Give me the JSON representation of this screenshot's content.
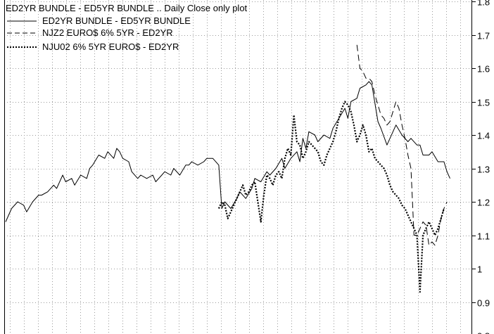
{
  "chart_data": {
    "type": "line",
    "title": "ED2YR BUNDLE - ED5YR BUNDLE .. Daily Close only plot",
    "xlabel": "",
    "ylabel": "",
    "ylim": [
      0.8,
      1.8
    ],
    "yticks": [
      0.8,
      0.9,
      1.0,
      1.1,
      1.2,
      1.3,
      1.4,
      1.5,
      1.6,
      1.7,
      1.8
    ],
    "ytick_labels": [
      "0.8",
      "0.9",
      "1",
      "1.1",
      "1.2",
      "1.3",
      "1.4",
      "1.5",
      "1.6",
      "1.7",
      "1.8"
    ],
    "y_axis_side": "right",
    "x_ticks_labeled": false,
    "grid": true,
    "legend_position": "top-left",
    "xlim": [
      0,
      150
    ],
    "series": [
      {
        "name": "ED2YR BUNDLE - ED5YR BUNDLE",
        "style": "solid",
        "x": [
          0,
          2,
          4,
          6,
          7,
          9,
          11,
          12,
          14,
          16,
          17,
          19,
          20,
          22,
          23,
          25,
          27,
          28,
          29,
          31,
          33,
          34,
          36,
          37,
          38,
          39,
          41,
          42,
          44,
          45,
          47,
          49,
          50,
          52,
          53,
          55,
          56,
          58,
          60,
          61,
          62,
          64,
          66,
          67,
          69,
          71,
          72,
          73,
          75,
          77,
          78,
          80,
          82,
          83,
          85,
          87,
          88,
          90,
          92,
          93,
          95,
          97,
          98,
          99,
          100,
          101,
          103,
          104,
          106,
          108,
          109,
          111,
          113,
          114,
          115,
          117,
          118,
          120,
          121,
          122,
          124,
          125,
          127,
          129,
          130,
          132,
          134,
          135,
          137,
          138,
          139,
          141,
          142,
          144,
          146,
          147,
          148
        ],
        "y": [
          1.14,
          1.18,
          1.2,
          1.19,
          1.17,
          1.2,
          1.22,
          1.22,
          1.23,
          1.25,
          1.24,
          1.28,
          1.26,
          1.27,
          1.25,
          1.28,
          1.27,
          1.3,
          1.31,
          1.34,
          1.33,
          1.35,
          1.33,
          1.36,
          1.35,
          1.33,
          1.32,
          1.29,
          1.27,
          1.28,
          1.27,
          1.28,
          1.26,
          1.28,
          1.29,
          1.28,
          1.3,
          1.28,
          1.31,
          1.31,
          1.32,
          1.31,
          1.32,
          1.33,
          1.33,
          1.31,
          1.18,
          1.2,
          1.18,
          1.21,
          1.23,
          1.21,
          1.24,
          1.27,
          1.26,
          1.29,
          1.28,
          1.3,
          1.33,
          1.3,
          1.33,
          1.35,
          1.32,
          1.39,
          1.36,
          1.41,
          1.4,
          1.38,
          1.4,
          1.39,
          1.42,
          1.45,
          1.48,
          1.45,
          1.5,
          1.51,
          1.54,
          1.55,
          1.56,
          1.55,
          1.44,
          1.42,
          1.37,
          1.41,
          1.43,
          1.4,
          1.38,
          1.39,
          1.37,
          1.37,
          1.34,
          1.34,
          1.35,
          1.32,
          1.32,
          1.29,
          1.27
        ]
      },
      {
        "name": "NJZ2 EURO$ 6% 5YR - ED2YR",
        "style": "dashed",
        "x": [
          117,
          118,
          119,
          120,
          121,
          122,
          123,
          124,
          125,
          126,
          127,
          128,
          129,
          130,
          131,
          132,
          133,
          134,
          135,
          136,
          137,
          138,
          139,
          140,
          141,
          142,
          143,
          144,
          145,
          146,
          147
        ],
        "y": [
          1.67,
          1.6,
          1.59,
          1.57,
          1.57,
          1.56,
          1.52,
          1.49,
          1.46,
          1.45,
          1.43,
          1.44,
          1.47,
          1.5,
          1.48,
          1.43,
          1.39,
          1.34,
          1.3,
          1.1,
          1.1,
          1.12,
          1.14,
          1.13,
          1.07,
          1.08,
          1.07,
          1.1,
          1.15,
          1.18,
          1.2
        ]
      },
      {
        "name": "NJU02 6% 5YR EURO$ - ED2YR",
        "style": "dotted",
        "x": [
          71,
          72,
          73,
          74,
          75,
          76,
          77,
          78,
          79,
          80,
          81,
          82,
          83,
          84,
          85,
          86,
          87,
          88,
          89,
          90,
          91,
          92,
          93,
          94,
          95,
          96,
          97,
          98,
          99,
          100,
          101,
          102,
          103,
          104,
          105,
          106,
          107,
          108,
          109,
          110,
          111,
          112,
          113,
          114,
          115,
          116,
          117,
          118,
          119,
          120,
          121,
          122,
          123,
          124,
          125,
          126,
          127,
          128,
          129,
          130,
          131,
          132,
          133,
          134,
          135,
          136,
          137,
          138,
          139,
          140,
          141,
          142,
          143,
          144,
          145,
          146
        ],
        "y": [
          1.18,
          1.2,
          1.19,
          1.15,
          1.17,
          1.19,
          1.21,
          1.23,
          1.25,
          1.22,
          1.23,
          1.25,
          1.26,
          1.2,
          1.14,
          1.22,
          1.28,
          1.27,
          1.25,
          1.28,
          1.29,
          1.27,
          1.33,
          1.36,
          1.34,
          1.46,
          1.38,
          1.37,
          1.33,
          1.35,
          1.38,
          1.37,
          1.36,
          1.35,
          1.32,
          1.31,
          1.34,
          1.36,
          1.38,
          1.41,
          1.45,
          1.48,
          1.5,
          1.49,
          1.47,
          1.43,
          1.38,
          1.4,
          1.43,
          1.4,
          1.35,
          1.36,
          1.33,
          1.32,
          1.31,
          1.3,
          1.28,
          1.25,
          1.23,
          1.22,
          1.21,
          1.19,
          1.18,
          1.16,
          1.14,
          1.12,
          1.1,
          0.93,
          1.1,
          1.12,
          1.14,
          1.12,
          1.1,
          1.12,
          1.15,
          1.18
        ]
      }
    ]
  }
}
